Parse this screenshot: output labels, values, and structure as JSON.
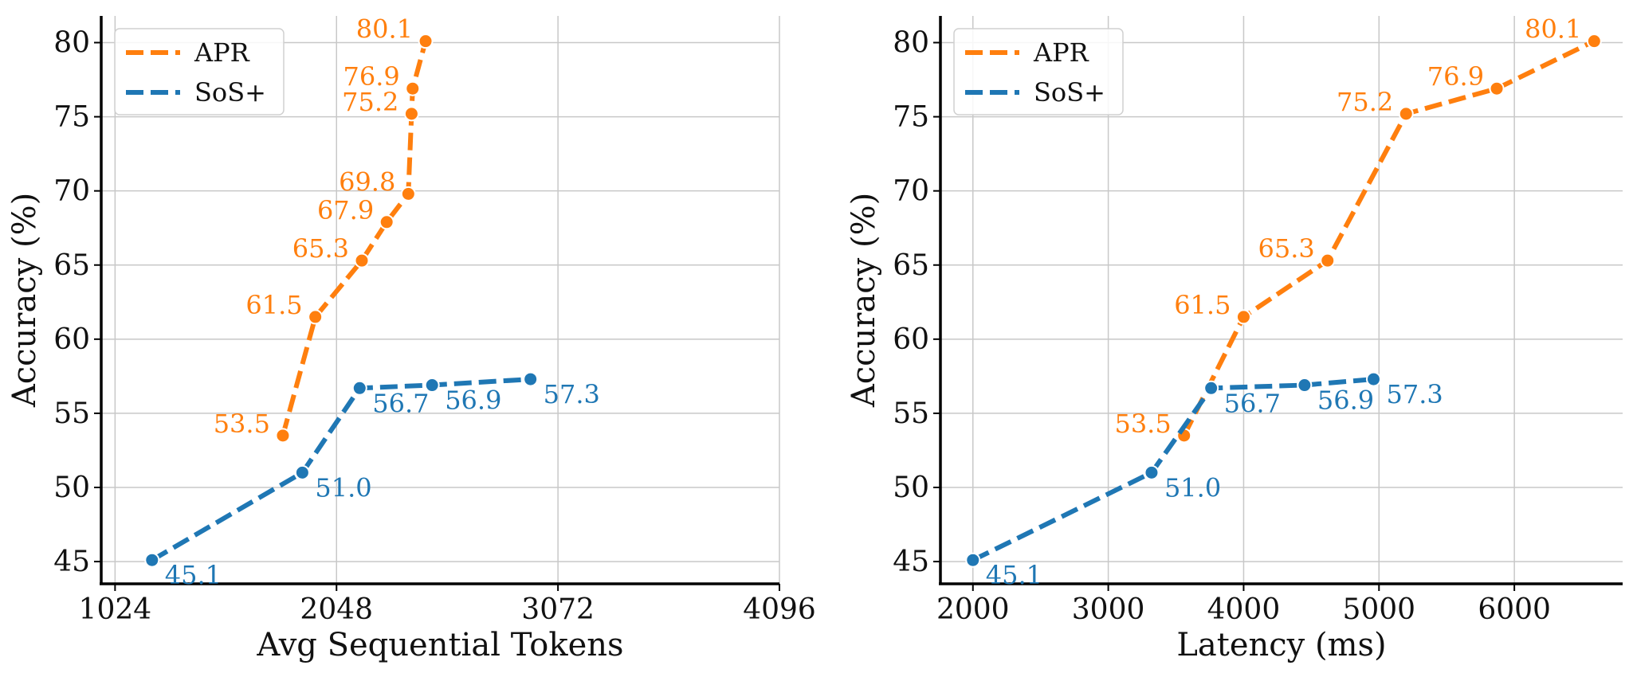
{
  "chart_data": [
    {
      "type": "line",
      "xlabel": "Avg Sequential Tokens",
      "ylabel": "Accuracy (%)",
      "xlim": [
        960,
        4096
      ],
      "ylim": [
        43.5,
        81.8
      ],
      "x_ticks": [
        1024,
        2048,
        3072,
        4096
      ],
      "y_ticks": [
        45,
        50,
        55,
        60,
        65,
        70,
        75,
        80
      ],
      "grid": true,
      "legend_position": "top-left",
      "series": [
        {
          "name": "APR",
          "color": "#ff7f0e",
          "label_side": "left",
          "points": [
            {
              "x": 1800,
              "y": 53.5,
              "label": "53.5"
            },
            {
              "x": 1950,
              "y": 61.5,
              "label": "61.5"
            },
            {
              "x": 2165,
              "y": 65.3,
              "label": "65.3"
            },
            {
              "x": 2280,
              "y": 67.9,
              "label": "67.9"
            },
            {
              "x": 2380,
              "y": 69.8,
              "label": "69.8"
            },
            {
              "x": 2395,
              "y": 75.2,
              "label": "75.2"
            },
            {
              "x": 2400,
              "y": 76.9,
              "label": "76.9"
            },
            {
              "x": 2460,
              "y": 80.1,
              "label": "80.1"
            }
          ]
        },
        {
          "name": "SoS+",
          "color": "#1f77b4",
          "label_side": "right",
          "points": [
            {
              "x": 1195,
              "y": 45.1,
              "label": "45.1"
            },
            {
              "x": 1890,
              "y": 51.0,
              "label": "51.0"
            },
            {
              "x": 2155,
              "y": 56.7,
              "label": "56.7"
            },
            {
              "x": 2490,
              "y": 56.9,
              "label": "56.9"
            },
            {
              "x": 2945,
              "y": 57.3,
              "label": "57.3"
            }
          ]
        }
      ]
    },
    {
      "type": "line",
      "xlabel": "Latency (ms)",
      "ylabel": "Accuracy (%)",
      "xlim": [
        1760,
        6800
      ],
      "ylim": [
        43.5,
        81.8
      ],
      "x_ticks": [
        2000,
        3000,
        4000,
        5000,
        6000
      ],
      "y_ticks": [
        45,
        50,
        55,
        60,
        65,
        70,
        75,
        80
      ],
      "grid": true,
      "legend_position": "top-left",
      "series": [
        {
          "name": "APR",
          "color": "#ff7f0e",
          "label_side": "left",
          "points": [
            {
              "x": 3560,
              "y": 53.5,
              "label": "53.5"
            },
            {
              "x": 4000,
              "y": 61.5,
              "label": "61.5"
            },
            {
              "x": 4620,
              "y": 65.3,
              "label": "65.3"
            },
            {
              "x": 5200,
              "y": 75.2,
              "label": "75.2"
            },
            {
              "x": 5870,
              "y": 76.9,
              "label": "76.9"
            },
            {
              "x": 6590,
              "y": 80.1,
              "label": "80.1"
            }
          ]
        },
        {
          "name": "SoS+",
          "color": "#1f77b4",
          "label_side": "right",
          "points": [
            {
              "x": 2000,
              "y": 45.1,
              "label": "45.1"
            },
            {
              "x": 3320,
              "y": 51.0,
              "label": "51.0"
            },
            {
              "x": 3760,
              "y": 56.7,
              "label": "56.7"
            },
            {
              "x": 4450,
              "y": 56.9,
              "label": "56.9"
            },
            {
              "x": 4960,
              "y": 57.3,
              "label": "57.3"
            }
          ]
        }
      ]
    }
  ]
}
